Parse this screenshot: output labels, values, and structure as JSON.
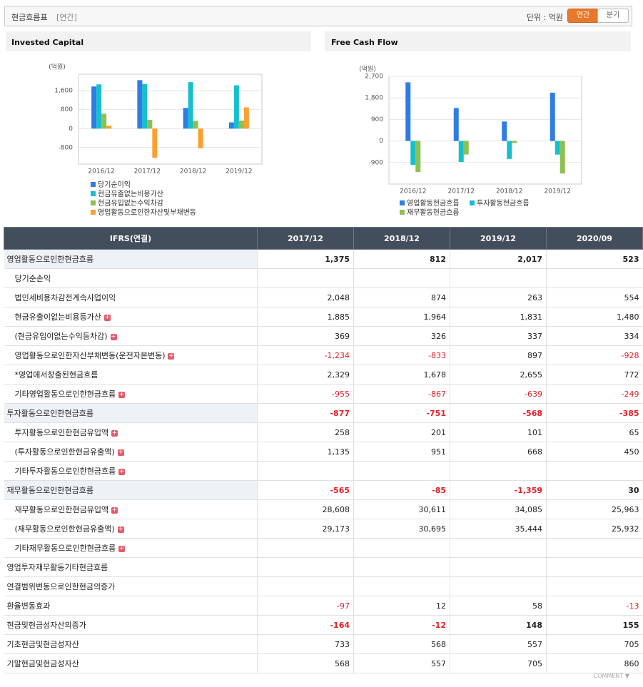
{
  "header": {
    "title": "현금흐름표",
    "period": "[연간]",
    "unit": "단위 : 억원",
    "tabs": [
      "연간",
      "분기"
    ]
  },
  "chart_data": [
    {
      "type": "bar",
      "title": "Invested Capital",
      "unit_label": "(억원)",
      "categories": [
        "2016/12",
        "2017/12",
        "2018/12",
        "2019/12"
      ],
      "ylim": [
        -1500,
        2300
      ],
      "yticks": [
        -800,
        0,
        800,
        {
          "value": 1600,
          "label": "1,600"
        }
      ],
      "grid": true,
      "series": [
        {
          "name": "당기순이익",
          "color": "#2e7de1",
          "values": [
            1780,
            2048,
            874,
            263
          ]
        },
        {
          "name": "현금유출없는비용가산",
          "color": "#17bfce",
          "values": [
            1870,
            1885,
            1964,
            1831
          ]
        },
        {
          "name": "현금유입없는수익차감",
          "color": "#8cc152",
          "values": [
            630,
            369,
            326,
            337
          ]
        },
        {
          "name": "영업활동으로인한자산및부채변동",
          "color": "#f9a030",
          "values": [
            120,
            -1234,
            -833,
            897
          ]
        }
      ]
    },
    {
      "type": "bar",
      "title": "Free Cash Flow",
      "unit_label": "(억원)",
      "categories": [
        "2016/12",
        "2017/12",
        "2018/12",
        "2019/12"
      ],
      "ylim": [
        -1800,
        2700
      ],
      "yticks": [
        -900,
        0,
        900,
        {
          "value": 1800,
          "label": "1,800"
        },
        {
          "value": 2700,
          "label": "2,700"
        }
      ],
      "grid": true,
      "series": [
        {
          "name": "영업활동현금흐름",
          "color": "#2e7de1",
          "values": [
            2450,
            1375,
            812,
            2017
          ]
        },
        {
          "name": "투자활동현금흐름",
          "color": "#17bfce",
          "values": [
            -1000,
            -877,
            -751,
            -568
          ]
        },
        {
          "name": "재무활동현금흐름",
          "color": "#8cc152",
          "values": [
            -1300,
            -565,
            -85,
            -1359
          ]
        }
      ]
    }
  ],
  "table": {
    "columns": [
      "IFRS(연결)",
      "2017/12",
      "2018/12",
      "2019/12",
      "2020/09"
    ],
    "rows": [
      {
        "label": "영업활동으로인한현금흐름",
        "values": [
          "1,375",
          "812",
          "2,017",
          "523"
        ]
      },
      {
        "label": "당기순손익",
        "values": [
          null,
          null,
          null,
          null
        ]
      },
      {
        "label": "법인세비용차감전계속사업이익",
        "values": [
          "2,048",
          "874",
          "263",
          "554"
        ]
      },
      {
        "label": "현금유출이없는비용등가산",
        "values": [
          "1,885",
          "1,964",
          "1,831",
          "1,480"
        ]
      },
      {
        "label": "(현금유입이없는수익등차감)",
        "values": [
          "369",
          "326",
          "337",
          "334"
        ]
      },
      {
        "label": "영업활동으로인한자산부채변동(운전자본변동)",
        "values": [
          "-1,234",
          "-833",
          "897",
          "-928"
        ]
      },
      {
        "label": "*영업에서창출된현금흐름",
        "values": [
          "2,329",
          "1,678",
          "2,655",
          "772"
        ]
      },
      {
        "label": "기타영업활동으로인한현금흐름",
        "values": [
          "-955",
          "-867",
          "-639",
          "-249"
        ]
      },
      {
        "label": "투자활동으로인한현금흐름",
        "values": [
          "-877",
          "-751",
          "-568",
          "-385"
        ]
      },
      {
        "label": "투자활동으로인한현금유입액",
        "values": [
          "258",
          "201",
          "101",
          "65"
        ]
      },
      {
        "label": "(투자활동으로인한현금유출액)",
        "values": [
          "1,135",
          "951",
          "668",
          "450"
        ]
      },
      {
        "label": "기타투자활동으로인한현금흐름",
        "values": [
          null,
          null,
          null,
          null
        ]
      },
      {
        "label": "재무활동으로인한현금흐름",
        "values": [
          "-565",
          "-85",
          "-1,359",
          "30"
        ]
      },
      {
        "label": "재무활동으로인한현금유입액",
        "values": [
          "28,608",
          "30,611",
          "34,085",
          "25,963"
        ]
      },
      {
        "label": "(재무활동으로인한현금유출액)",
        "values": [
          "29,173",
          "30,695",
          "35,444",
          "25,932"
        ]
      },
      {
        "label": "기타재무활동으로인한현금흐름",
        "values": [
          null,
          null,
          null,
          null
        ]
      },
      {
        "label": "영업투자재무활동기타현금흐름",
        "values": [
          null,
          null,
          null,
          null
        ]
      },
      {
        "label": "연결범위변동으로인한현금의증가",
        "values": [
          null,
          null,
          null,
          null
        ]
      },
      {
        "label": "환율변동효과",
        "values": [
          "-97",
          "12",
          "58",
          "-13"
        ]
      },
      {
        "label": "현금및현금성자산의증가",
        "values": [
          "-164",
          "-12",
          "148",
          "155"
        ]
      },
      {
        "label": "기초현금및현금성자산",
        "values": [
          "733",
          "568",
          "557",
          "705"
        ]
      },
      {
        "label": "기말현금및현금성자산",
        "values": [
          "568",
          "557",
          "705",
          "860"
        ]
      }
    ]
  },
  "footer": {
    "comment": "COMMENT"
  }
}
